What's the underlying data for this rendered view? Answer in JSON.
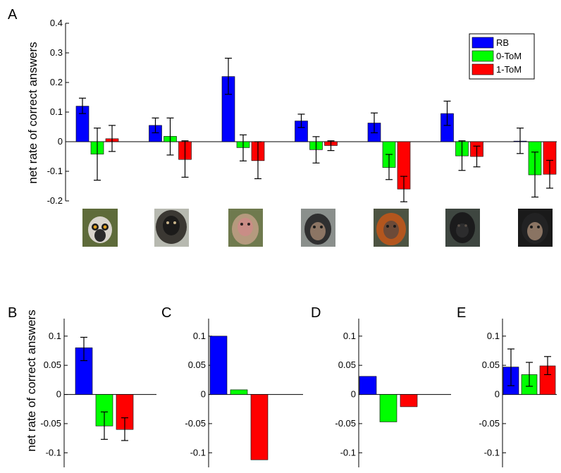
{
  "figure": {
    "series_colors": {
      "RB": "#0000ff",
      "0-ToM": "#00ff00",
      "1-ToM": "#ff0000"
    },
    "animal_icons": [
      "ring-tailed-lemur-photo",
      "lion-tailed-macaque-photo",
      "macaque-photo",
      "chimpanzee-juvenile-photo",
      "orangutan-photo",
      "gorilla-photo",
      "chimpanzee-photo"
    ]
  },
  "chart_data": [
    {
      "panel": "A",
      "type": "bar",
      "ylabel": "net rate of correct answers",
      "ylim": [
        -0.2,
        0.4
      ],
      "yticks": [
        -0.2,
        -0.1,
        0,
        0.1,
        0.2,
        0.3,
        0.4
      ],
      "ytick_labels": [
        "-0.2",
        "-0.1",
        "0",
        "0.1",
        "0.2",
        "0.3",
        "0.4"
      ],
      "legend": {
        "position": "top-right",
        "entries": [
          "RB",
          "0-ToM",
          "1-ToM"
        ]
      },
      "categories": [
        "",
        "",
        "",
        "",
        "",
        "",
        ""
      ],
      "series": [
        {
          "name": "RB",
          "values": [
            0.12,
            0.055,
            0.22,
            0.07,
            0.063,
            0.095,
            0.002
          ],
          "err_low": [
            0.095,
            0.03,
            0.16,
            0.048,
            0.03,
            0.055,
            -0.04
          ],
          "err_high": [
            0.147,
            0.08,
            0.282,
            0.093,
            0.097,
            0.137,
            0.046
          ]
        },
        {
          "name": "0-ToM",
          "values": [
            -0.042,
            0.018,
            -0.02,
            -0.027,
            -0.087,
            -0.048,
            -0.112
          ],
          "err_low": [
            -0.13,
            -0.045,
            -0.065,
            -0.072,
            -0.128,
            -0.097,
            -0.187
          ],
          "err_high": [
            0.046,
            0.08,
            0.023,
            0.017,
            -0.043,
            0.003,
            -0.035
          ]
        },
        {
          "name": "1-ToM",
          "values": [
            0.01,
            -0.06,
            -0.064,
            -0.013,
            -0.16,
            -0.05,
            -0.11
          ],
          "err_low": [
            -0.033,
            -0.12,
            -0.125,
            -0.03,
            -0.203,
            -0.085,
            -0.157
          ],
          "err_high": [
            0.055,
            0.003,
            0.0,
            0.003,
            -0.117,
            -0.015,
            -0.063
          ]
        }
      ]
    },
    {
      "panel": "B",
      "type": "bar",
      "ylabel": "net rate of correct answers",
      "ylim": [
        -0.125,
        0.13
      ],
      "yticks": [
        -0.1,
        -0.05,
        0,
        0.05,
        0.1
      ],
      "ytick_labels": [
        "-0.1",
        "-0.05",
        "0",
        "0.05",
        "0.1"
      ],
      "series": [
        {
          "name": "RB",
          "values": [
            0.08
          ],
          "err_low": [
            0.058
          ],
          "err_high": [
            0.098
          ]
        },
        {
          "name": "0-ToM",
          "values": [
            -0.054
          ],
          "err_low": [
            -0.077
          ],
          "err_high": [
            -0.03
          ]
        },
        {
          "name": "1-ToM",
          "values": [
            -0.06
          ],
          "err_low": [
            -0.079
          ],
          "err_high": [
            -0.04
          ]
        }
      ]
    },
    {
      "panel": "C",
      "type": "bar",
      "ylim": [
        -0.125,
        0.13
      ],
      "yticks": [
        -0.1,
        -0.05,
        0,
        0.05,
        0.1
      ],
      "ytick_labels": [
        "-0.1",
        "-0.05",
        "0",
        "0.05",
        "0.1"
      ],
      "series": [
        {
          "name": "RB",
          "values": [
            0.1
          ]
        },
        {
          "name": "0-ToM",
          "values": [
            0.008
          ]
        },
        {
          "name": "1-ToM",
          "values": [
            -0.112
          ]
        }
      ]
    },
    {
      "panel": "D",
      "type": "bar",
      "ylim": [
        -0.125,
        0.13
      ],
      "yticks": [
        -0.1,
        -0.05,
        0,
        0.05,
        0.1
      ],
      "ytick_labels": [
        "-0.1",
        "-0.05",
        "0",
        "0.05",
        "0.1"
      ],
      "series": [
        {
          "name": "RB",
          "values": [
            0.031
          ]
        },
        {
          "name": "0-ToM",
          "values": [
            -0.047
          ]
        },
        {
          "name": "1-ToM",
          "values": [
            -0.021
          ]
        }
      ]
    },
    {
      "panel": "E",
      "type": "bar",
      "ylim": [
        -0.125,
        0.13
      ],
      "yticks": [
        -0.1,
        -0.05,
        0,
        0.05,
        0.1
      ],
      "ytick_labels": [
        "-0.1",
        "-0.05",
        "0",
        "0.05",
        "0.1"
      ],
      "series": [
        {
          "name": "RB",
          "values": [
            0.047
          ],
          "err_low": [
            0.015
          ],
          "err_high": [
            0.078
          ]
        },
        {
          "name": "0-ToM",
          "values": [
            0.034
          ],
          "err_low": [
            0.014
          ],
          "err_high": [
            0.055
          ]
        },
        {
          "name": "1-ToM",
          "values": [
            0.049
          ],
          "err_low": [
            0.034
          ],
          "err_high": [
            0.065
          ]
        }
      ]
    }
  ]
}
